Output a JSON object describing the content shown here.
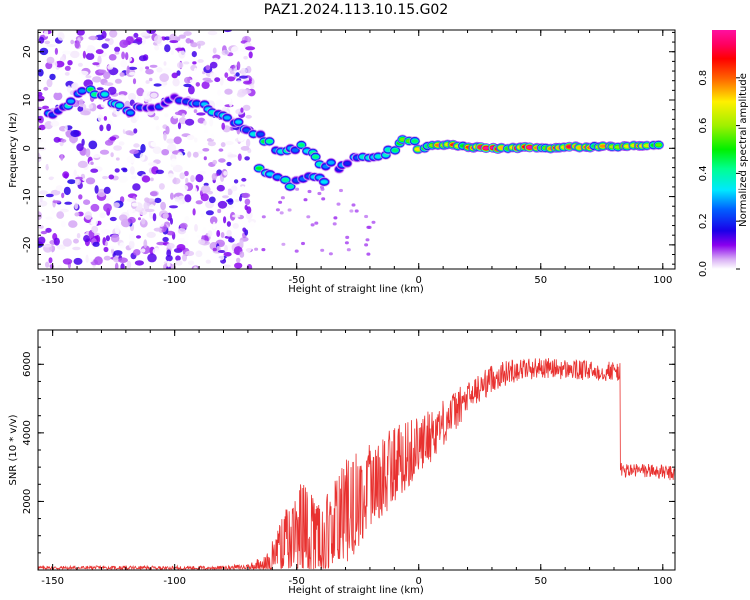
{
  "title": "PAZ1.2024.113.10.15.G02",
  "chart_data": [
    {
      "type": "heatmap",
      "xlabel": "Height of straight line (km)",
      "ylabel": "Frequency (Hz)",
      "xlim": [
        -156,
        105
      ],
      "ylim": [
        -25,
        24.5
      ],
      "xticks": [
        -150,
        -100,
        -50,
        0,
        50,
        100
      ],
      "yticks": [
        -20,
        -10,
        0,
        10,
        20
      ],
      "colorbar": {
        "label": "Normalized spectral amplitude",
        "range": [
          0,
          1
        ],
        "ticks": [
          "0.0",
          "0.2",
          "0.4",
          "0.6",
          "0.8"
        ],
        "colormap": "gist_ncar-like (white → purple → blue → cyan → green → yellow → red → pink)"
      },
      "ridge": [
        {
          "x": -152,
          "f": 7,
          "amp": 0.25
        },
        {
          "x": -142,
          "f": 10,
          "amp": 0.35
        },
        {
          "x": -135,
          "f": 12,
          "amp": 0.42
        },
        {
          "x": -128,
          "f": 10.5,
          "amp": 0.4
        },
        {
          "x": -118,
          "f": 8,
          "amp": 0.25
        },
        {
          "x": -100,
          "f": 10,
          "amp": 0.2
        },
        {
          "x": -88,
          "f": 8.5,
          "amp": 0.3
        },
        {
          "x": -78,
          "f": 6,
          "amp": 0.35
        },
        {
          "x": -70,
          "f": 4,
          "amp": 0.35
        },
        {
          "x": -63,
          "f": 2,
          "amp": 0.4
        },
        {
          "x": -56,
          "f": -1,
          "amp": 0.35
        },
        {
          "x": -48,
          "f": 0,
          "amp": 0.4
        },
        {
          "x": -40,
          "f": -3,
          "amp": 0.35
        },
        {
          "x": -33,
          "f": -4,
          "amp": 0.3
        },
        {
          "x": -25,
          "f": -2,
          "amp": 0.35
        },
        {
          "x": -18,
          "f": -1.5,
          "amp": 0.4
        },
        {
          "x": -12,
          "f": -1,
          "amp": 0.45
        },
        {
          "x": -6,
          "f": 2.5,
          "amp": 0.55
        },
        {
          "x": 0,
          "f": 0,
          "amp": 0.6
        },
        {
          "x": 10,
          "f": 0.8,
          "amp": 0.7
        },
        {
          "x": 20,
          "f": 0.2,
          "amp": 0.8
        },
        {
          "x": 30,
          "f": 0.0,
          "amp": 0.9
        },
        {
          "x": 40,
          "f": 0.2,
          "amp": 0.85
        },
        {
          "x": 50,
          "f": 0.0,
          "amp": 0.85
        },
        {
          "x": 60,
          "f": 0.3,
          "amp": 0.8
        },
        {
          "x": 70,
          "f": 0.3,
          "amp": 0.75
        },
        {
          "x": 80,
          "f": 0.4,
          "amp": 0.75
        },
        {
          "x": 90,
          "f": 0.6,
          "amp": 0.7
        },
        {
          "x": 100,
          "f": 0.7,
          "amp": 0.65
        }
      ],
      "secondary_branch": [
        {
          "x": -65,
          "f": -4,
          "amp": 0.4
        },
        {
          "x": -58,
          "f": -6,
          "amp": 0.4
        },
        {
          "x": -52,
          "f": -8,
          "amp": 0.35
        },
        {
          "x": -45,
          "f": -6,
          "amp": 0.3
        },
        {
          "x": -36,
          "f": -7,
          "amp": 0.35
        }
      ],
      "noise_region_x": [
        -156,
        -68
      ]
    },
    {
      "type": "line",
      "xlabel": "Height of straight line (km)",
      "ylabel": "SNR (10 * v/v)",
      "xlim": [
        -156,
        105
      ],
      "ylim": [
        0,
        7000
      ],
      "xticks": [
        -150,
        -100,
        -50,
        0,
        50,
        100
      ],
      "yticks": [
        2000,
        4000,
        6000
      ],
      "series": [
        {
          "color": "#e8312f",
          "envelope": [
            {
              "x": -156,
              "mean": 60,
              "spread": 60
            },
            {
              "x": -80,
              "mean": 60,
              "spread": 60
            },
            {
              "x": -70,
              "mean": 90,
              "spread": 100
            },
            {
              "x": -62,
              "mean": 200,
              "spread": 300
            },
            {
              "x": -55,
              "mean": 800,
              "spread": 900
            },
            {
              "x": -48,
              "mean": 1200,
              "spread": 1400
            },
            {
              "x": -40,
              "mean": 800,
              "spread": 1100
            },
            {
              "x": -30,
              "mean": 1700,
              "spread": 1500
            },
            {
              "x": -20,
              "mean": 2300,
              "spread": 1400
            },
            {
              "x": -10,
              "mean": 3100,
              "spread": 1100
            },
            {
              "x": 0,
              "mean": 3600,
              "spread": 900
            },
            {
              "x": 10,
              "mean": 4300,
              "spread": 700
            },
            {
              "x": 20,
              "mean": 5000,
              "spread": 500
            },
            {
              "x": 30,
              "mean": 5600,
              "spread": 400
            },
            {
              "x": 40,
              "mean": 5850,
              "spread": 350
            },
            {
              "x": 50,
              "mean": 5900,
              "spread": 300
            },
            {
              "x": 60,
              "mean": 5850,
              "spread": 300
            },
            {
              "x": 70,
              "mean": 5800,
              "spread": 300
            },
            {
              "x": 82,
              "mean": 5800,
              "spread": 300
            },
            {
              "x": 83,
              "mean": 2900,
              "spread": 220
            },
            {
              "x": 95,
              "mean": 2900,
              "spread": 220
            },
            {
              "x": 105,
              "mean": 2800,
              "spread": 220
            }
          ]
        }
      ]
    }
  ]
}
